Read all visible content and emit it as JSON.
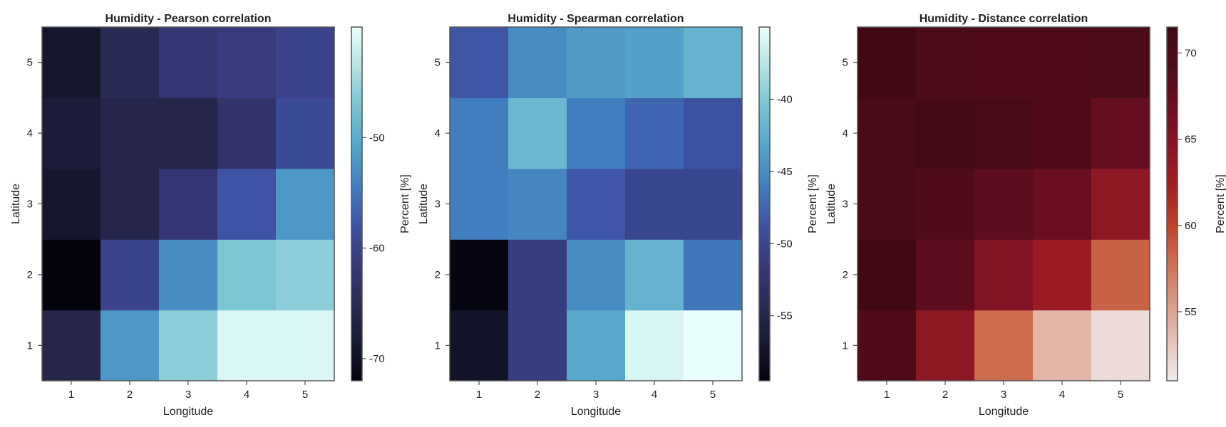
{
  "chart_data": [
    {
      "type": "heatmap",
      "title": "Humidity - Pearson correlation",
      "xlabel": "Longitude",
      "ylabel": "Latitude",
      "x": [
        1,
        2,
        3,
        4,
        5
      ],
      "y": [
        1,
        2,
        3,
        4,
        5
      ],
      "colorbar_label": "Percent [%]",
      "colorbar_ticks": [
        -70,
        -60,
        -50
      ],
      "colorbar_range": [
        -72,
        -40
      ],
      "colormap": "ice",
      "values": [
        [
          -66,
          -52,
          -46,
          -41,
          -41
        ],
        [
          -72,
          -60,
          -53,
          -47,
          -46
        ],
        [
          -69,
          -66,
          -62,
          -58,
          -52
        ],
        [
          -68,
          -66,
          -66,
          -63,
          -59
        ],
        [
          -69,
          -65,
          -62,
          -61,
          -60
        ]
      ]
    },
    {
      "type": "heatmap",
      "title": "Humidity - Spearman correlation",
      "xlabel": "Longitude",
      "ylabel": "Latitude",
      "x": [
        1,
        2,
        3,
        4,
        5
      ],
      "y": [
        1,
        2,
        3,
        4,
        5
      ],
      "colorbar_label": "Percent [%]",
      "colorbar_ticks": [
        -55,
        -50,
        -45,
        -40
      ],
      "colorbar_range": [
        -59.5,
        -35
      ],
      "colormap": "ice",
      "values": [
        [
          -57.5,
          -51,
          -43,
          -36,
          -35
        ],
        [
          -59.3,
          -51,
          -45,
          -42,
          -46.5
        ],
        [
          -46,
          -45.5,
          -48.5,
          -50,
          -50
        ],
        [
          -46,
          -41.5,
          -46,
          -47.5,
          -49
        ],
        [
          -48.5,
          -45,
          -44,
          -43.5,
          -42
        ]
      ]
    },
    {
      "type": "heatmap",
      "title": "Humidity - Distance correlation",
      "xlabel": "Longitude",
      "ylabel": "Latitude",
      "x": [
        1,
        2,
        3,
        4,
        5
      ],
      "y": [
        1,
        2,
        3,
        4,
        5
      ],
      "colorbar_label": "Percent [%]",
      "colorbar_ticks": [
        55,
        60,
        65,
        70
      ],
      "colorbar_range": [
        51,
        71.5
      ],
      "colormap": "amp",
      "values": [
        [
          69,
          64,
          58,
          54,
          52
        ],
        [
          71,
          68,
          65,
          63,
          58.5
        ],
        [
          70,
          69,
          68,
          67,
          64
        ],
        [
          70,
          70.5,
          70,
          69,
          67.5
        ],
        [
          71,
          69.5,
          69,
          69,
          69.5
        ]
      ]
    }
  ],
  "colors": {
    "ice": [
      "#04040f",
      "#191a33",
      "#2b2c55",
      "#37397b",
      "#3f54a6",
      "#4180c0",
      "#56a6cb",
      "#7ac4d3",
      "#b4e4e2",
      "#eafffd"
    ],
    "amp": [
      "#f1edec",
      "#e4c3b9",
      "#d99a84",
      "#cd6f52",
      "#bc4128",
      "#a31d22",
      "#861425",
      "#6b0f22",
      "#4d0b18",
      "#3c0912"
    ]
  }
}
